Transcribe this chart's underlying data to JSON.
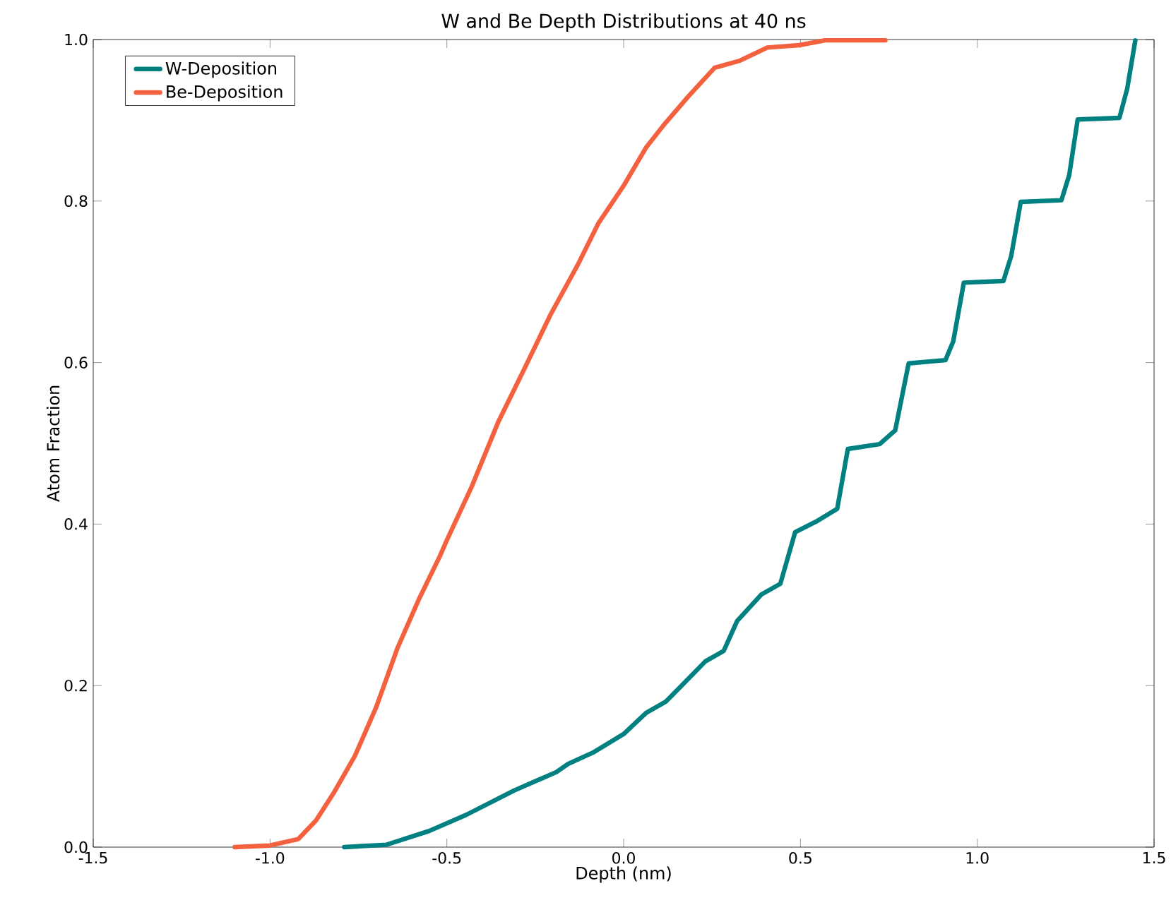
{
  "chart_data": {
    "type": "line",
    "title": "W and Be Depth Distributions at 40 ns",
    "xlabel": "Depth (nm)",
    "ylabel": "Atom Fraction",
    "xlim": [
      -1.5,
      1.5
    ],
    "ylim": [
      0,
      1
    ],
    "xticks": [
      -1.5,
      {
        "value": -1,
        "label": "-1.0"
      },
      -0.5,
      {
        "value": 0,
        "label": "0.0"
      },
      0.5,
      {
        "value": 1,
        "label": "1.0"
      },
      1.5
    ],
    "yticks": [
      {
        "value": 0,
        "label": "0.0"
      },
      0.2,
      0.4,
      0.6,
      0.8,
      {
        "value": 1,
        "label": "1.0"
      }
    ],
    "legend": "top left",
    "grid": false,
    "series": [
      {
        "name": "W-Deposition",
        "color": "#008080",
        "x": [
          -0.79,
          -0.67,
          -0.55,
          -0.445,
          -0.31,
          -0.19,
          -0.157,
          -0.087,
          0.0,
          0.063,
          0.119,
          0.164,
          0.231,
          0.283,
          0.321,
          0.39,
          0.443,
          0.485,
          0.544,
          0.604,
          0.634,
          0.724,
          0.768,
          0.806,
          0.91,
          0.932,
          0.962,
          1.074,
          1.096,
          1.123,
          1.238,
          1.26,
          1.284,
          1.402,
          1.424,
          1.447
        ],
        "values": [
          0,
          0.003,
          0.02,
          0.04,
          0.07,
          0.093,
          0.103,
          0.117,
          0.14,
          0.166,
          0.18,
          0.2,
          0.23,
          0.243,
          0.28,
          0.313,
          0.326,
          0.39,
          0.403,
          0.419,
          0.493,
          0.499,
          0.516,
          0.599,
          0.603,
          0.626,
          0.699,
          0.701,
          0.732,
          0.799,
          0.801,
          0.832,
          0.901,
          0.903,
          0.939,
          0.999
        ]
      },
      {
        "name": "Be-Deposition",
        "color": "#f4613f",
        "x": [
          -1.1,
          -1.0,
          -0.92,
          -0.87,
          -0.82,
          -0.76,
          -0.7,
          -0.64,
          -0.58,
          -0.52,
          -0.5,
          -0.43,
          -0.355,
          -0.28,
          -0.206,
          -0.131,
          -0.072,
          0.0,
          0.063,
          0.115,
          0.182,
          0.257,
          0.33,
          0.406,
          0.496,
          0.57,
          0.74
        ],
        "values": [
          0,
          0.002,
          0.01,
          0.033,
          0.067,
          0.113,
          0.173,
          0.246,
          0.306,
          0.36,
          0.38,
          0.446,
          0.526,
          0.593,
          0.66,
          0.72,
          0.772,
          0.819,
          0.866,
          0.895,
          0.929,
          0.965,
          0.974,
          0.99,
          0.993,
          0.999,
          0.999
        ]
      }
    ]
  }
}
